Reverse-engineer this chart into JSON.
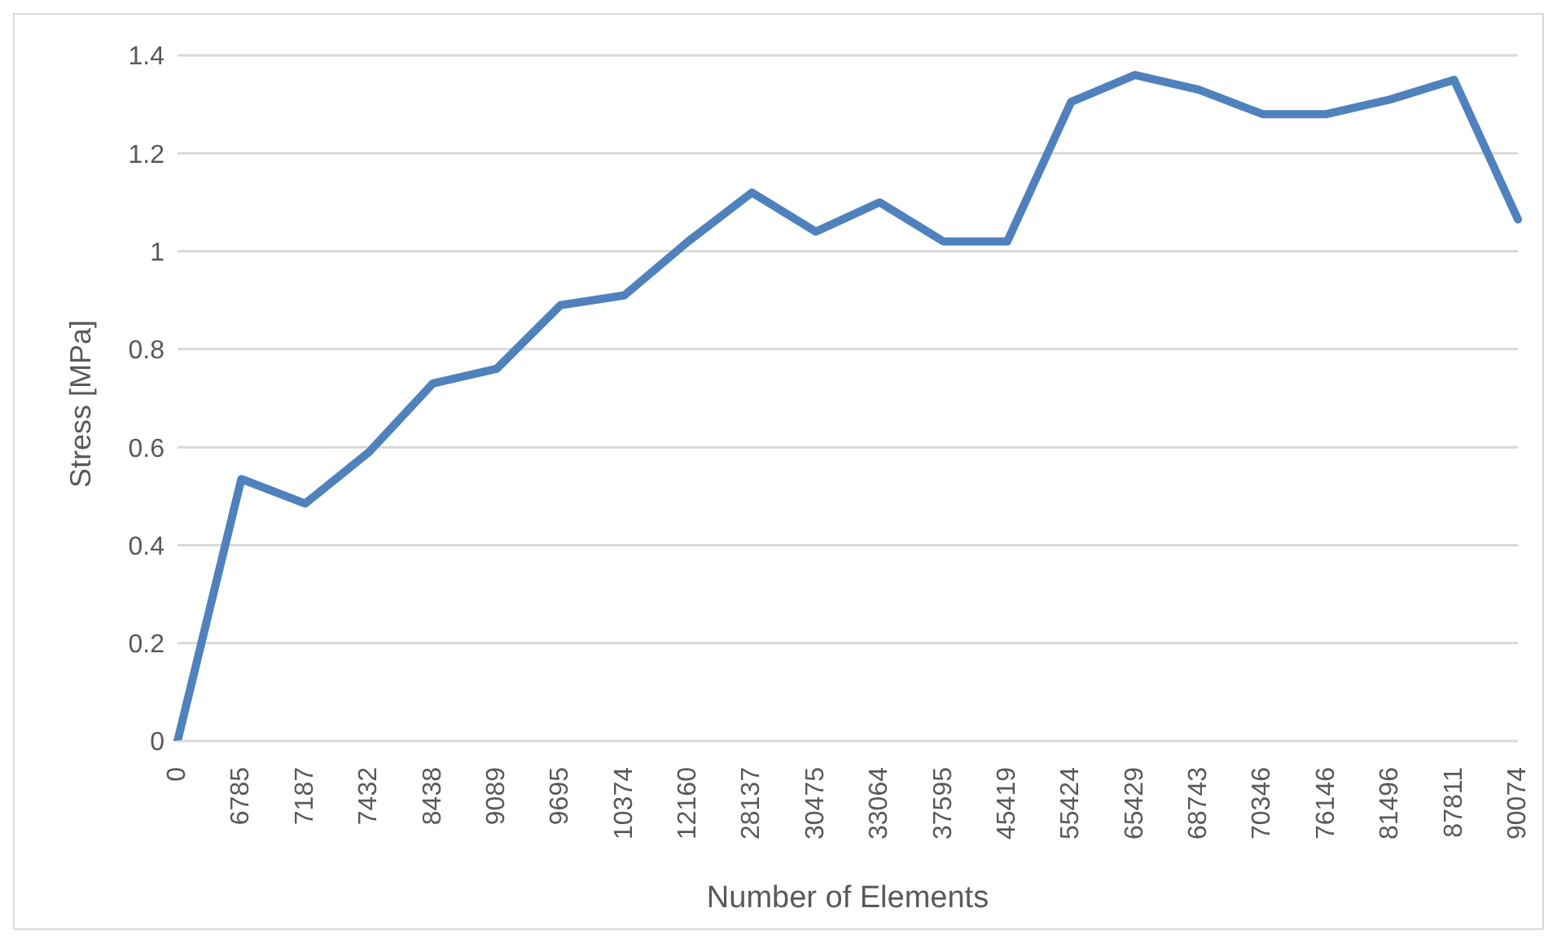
{
  "chart_data": {
    "type": "line",
    "xlabel": "Number of Elements",
    "ylabel": "Stress [MPa]",
    "categories": [
      "0",
      "6785",
      "7187",
      "7432",
      "8438",
      "9089",
      "9695",
      "10374",
      "12160",
      "28137",
      "30475",
      "33064",
      "37595",
      "45419",
      "55424",
      "65429",
      "68743",
      "70346",
      "76146",
      "81496",
      "87811",
      "90074"
    ],
    "series": [
      {
        "color": "#4f81bd",
        "values": [
          0,
          0.535,
          0.485,
          0.59,
          0.73,
          0.76,
          0.89,
          0.91,
          1.02,
          1.12,
          1.04,
          1.1,
          1.02,
          1.02,
          1.305,
          1.36,
          1.33,
          1.28,
          1.28,
          1.31,
          1.35,
          1.065
        ]
      }
    ],
    "ylim": [
      0,
      1.4
    ],
    "yticks": [
      0,
      0.2,
      0.4,
      0.6,
      0.8,
      1,
      1.2,
      1.4
    ],
    "grid": "y",
    "legend": false,
    "marker": "none",
    "line_style": "solid"
  }
}
